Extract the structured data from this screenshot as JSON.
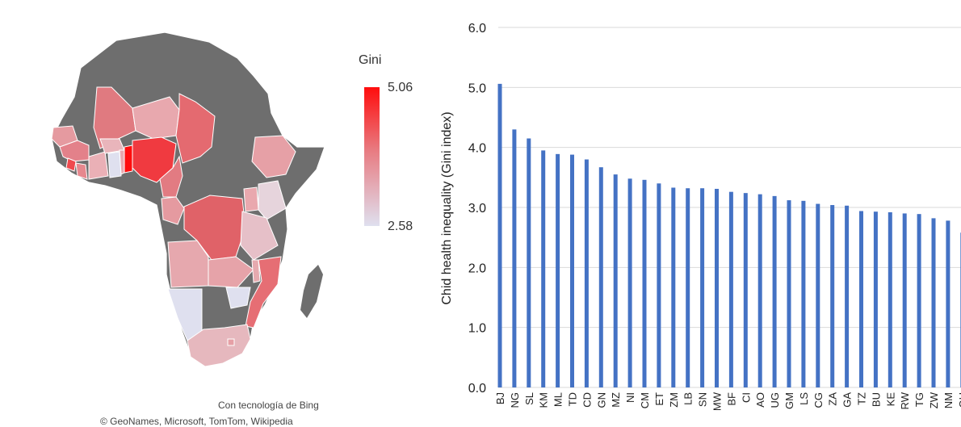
{
  "map": {
    "legend_title": "Gini",
    "legend_max": "5.06",
    "legend_min": "2.58",
    "credit_line1": "Con tecnología de Bing",
    "credit_line2": "© GeoNames, Microsoft, TomTom, Wikipedia",
    "colors": {
      "no_data": "#6e6e6e",
      "high": "#ff0d0d",
      "low": "#dfe0ef"
    }
  },
  "chart_data": {
    "type": "bar",
    "title": "",
    "xlabel": "",
    "ylabel": "Chid health inequality (Gini index)",
    "ylim": [
      0,
      6
    ],
    "yticks": [
      "0.0",
      "1.0",
      "2.0",
      "3.0",
      "4.0",
      "5.0",
      "6.0"
    ],
    "grid": true,
    "bar_color": "#4472c4",
    "categories": [
      "BJ",
      "NG",
      "SL",
      "KM",
      "ML",
      "TD",
      "CD",
      "GN",
      "MZ",
      "NI",
      "CM",
      "ET",
      "ZM",
      "LB",
      "SN",
      "MW",
      "BF",
      "CI",
      "AO",
      "UG",
      "GM",
      "LS",
      "CG",
      "ZA",
      "GA",
      "TZ",
      "BU",
      "KE",
      "RW",
      "TG",
      "ZW",
      "NM",
      "GH"
    ],
    "values": [
      5.06,
      4.3,
      4.15,
      3.95,
      3.89,
      3.88,
      3.8,
      3.67,
      3.55,
      3.48,
      3.46,
      3.4,
      3.33,
      3.32,
      3.32,
      3.31,
      3.26,
      3.24,
      3.22,
      3.19,
      3.12,
      3.11,
      3.06,
      3.04,
      3.03,
      2.94,
      2.93,
      2.92,
      2.9,
      2.89,
      2.82,
      2.78,
      2.58
    ]
  }
}
